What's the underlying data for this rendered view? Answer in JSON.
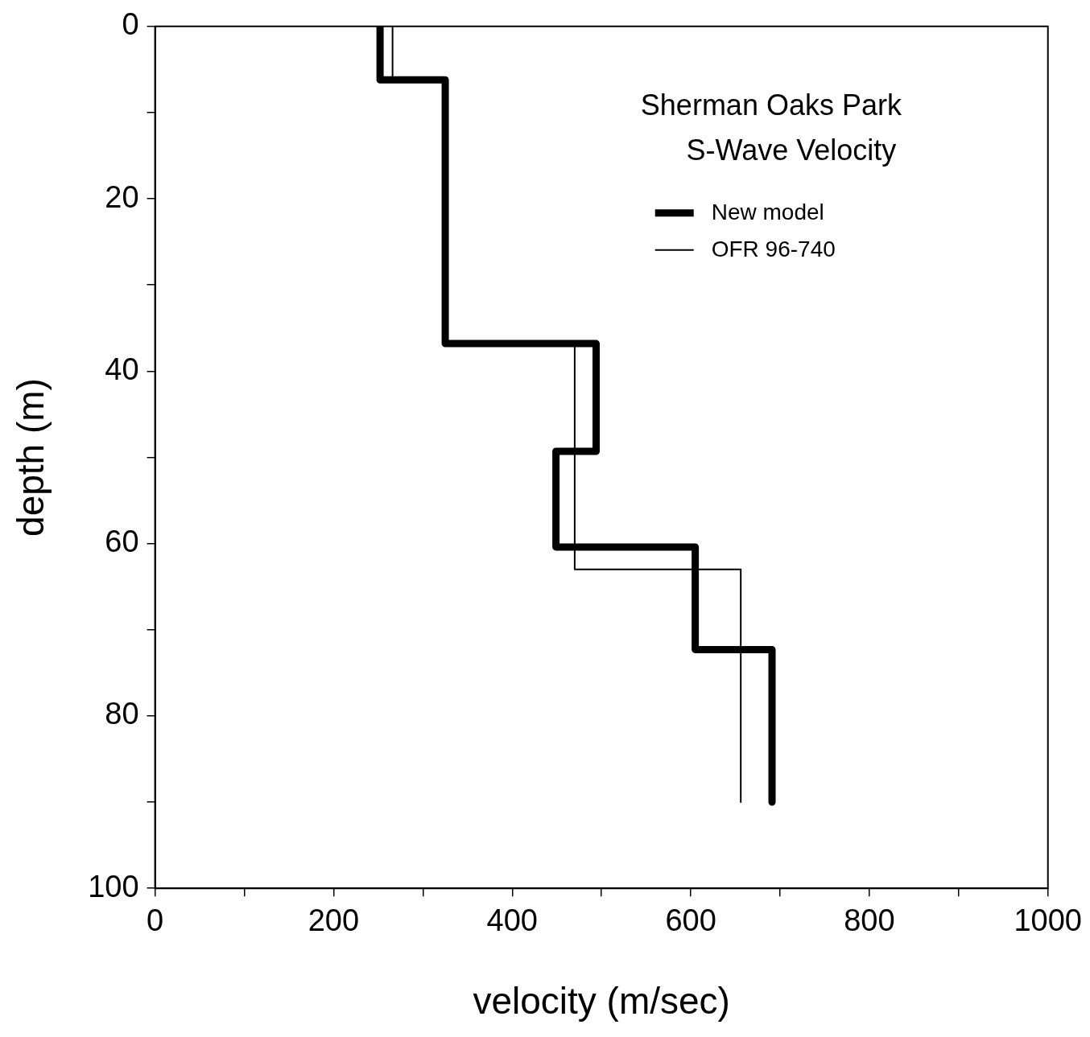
{
  "chart_data": {
    "type": "line",
    "title": "Sherman Oaks Park\nS-Wave Velocity",
    "xlabel": "velocity (m/sec)",
    "ylabel": "depth (m)",
    "xlim": [
      0,
      1000
    ],
    "xticks": [
      0,
      {
        "value": 100,
        "label": null
      },
      200,
      {
        "value": 300,
        "label": null
      },
      400,
      {
        "value": 500,
        "label": null
      },
      600,
      {
        "value": 700,
        "label": null
      },
      800,
      {
        "value": 900,
        "label": null
      },
      1000
    ],
    "ylim": [
      100,
      0
    ],
    "yticks": [
      0,
      {
        "value": 10,
        "label": null
      },
      20,
      {
        "value": 30,
        "label": null
      },
      40,
      {
        "value": 50,
        "label": null
      },
      60,
      {
        "value": 70,
        "label": null
      },
      80,
      {
        "value": 90,
        "label": null
      },
      100
    ],
    "series": [
      {
        "name": "New model",
        "color": "#000000",
        "x": [
          252,
          252,
          325,
          325,
          494,
          494,
          449,
          449,
          605,
          605,
          691,
          691
        ],
        "values": [
          0,
          6.2,
          6.2,
          36.8,
          36.8,
          49.3,
          49.3,
          60.4,
          60.4,
          72.3,
          72.3,
          90
        ]
      },
      {
        "name": "OFR 96-740",
        "color": "#000000",
        "x": [
          266,
          266,
          325,
          325,
          470,
          470,
          656,
          656
        ],
        "values": [
          0,
          6.2,
          6.2,
          36.8,
          36.8,
          63,
          63,
          90
        ]
      }
    ],
    "grid": false,
    "legend": "top right",
    "marker": "none",
    "line_style": "solid"
  }
}
